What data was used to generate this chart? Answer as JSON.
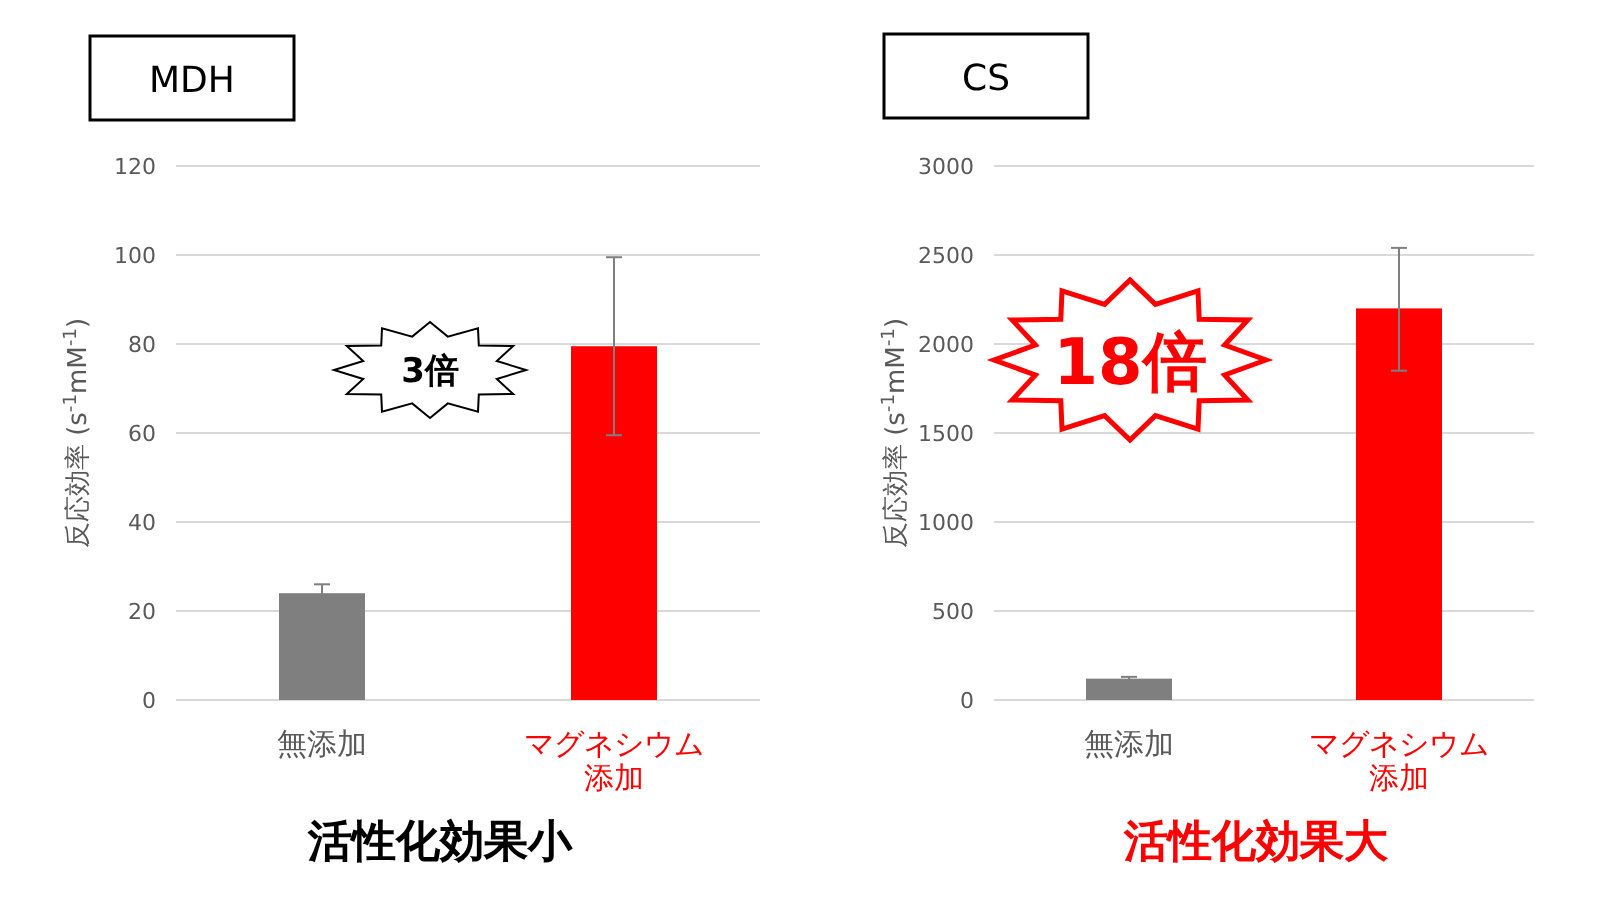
{
  "chart_data": [
    {
      "type": "bar",
      "title": "MDH",
      "ylabel": "反応効率 (s$^{-1}$mM$^{-1}$)",
      "categories": [
        "無添加",
        "マグネシウム添加"
      ],
      "values": [
        24,
        79.5
      ],
      "errors": [
        2,
        20
      ],
      "colors": [
        "#7f7f7f",
        "#ff0000"
      ],
      "ylim": [
        0,
        120
      ],
      "yticks": [
        0,
        20,
        40,
        60,
        80,
        100,
        120
      ],
      "grid": "y",
      "annotations": [
        "3倍",
        "活性化効果小"
      ]
    },
    {
      "type": "bar",
      "title": "CS",
      "ylabel": "反応効率 (s$^{-1}$mM$^{-1}$)",
      "categories": [
        "無添加",
        "マグネシウム添加"
      ],
      "values": [
        120,
        2200
      ],
      "errors": [
        10,
        [
          1850,
          2540
        ]
      ],
      "colors": [
        "#7f7f7f",
        "#ff0000"
      ],
      "ylim": [
        0,
        3000
      ],
      "yticks": [
        0,
        500,
        1000,
        1500,
        2000,
        2500,
        3000
      ],
      "grid": "y",
      "annotations": [
        "18倍",
        "活性化効果大"
      ]
    }
  ]
}
